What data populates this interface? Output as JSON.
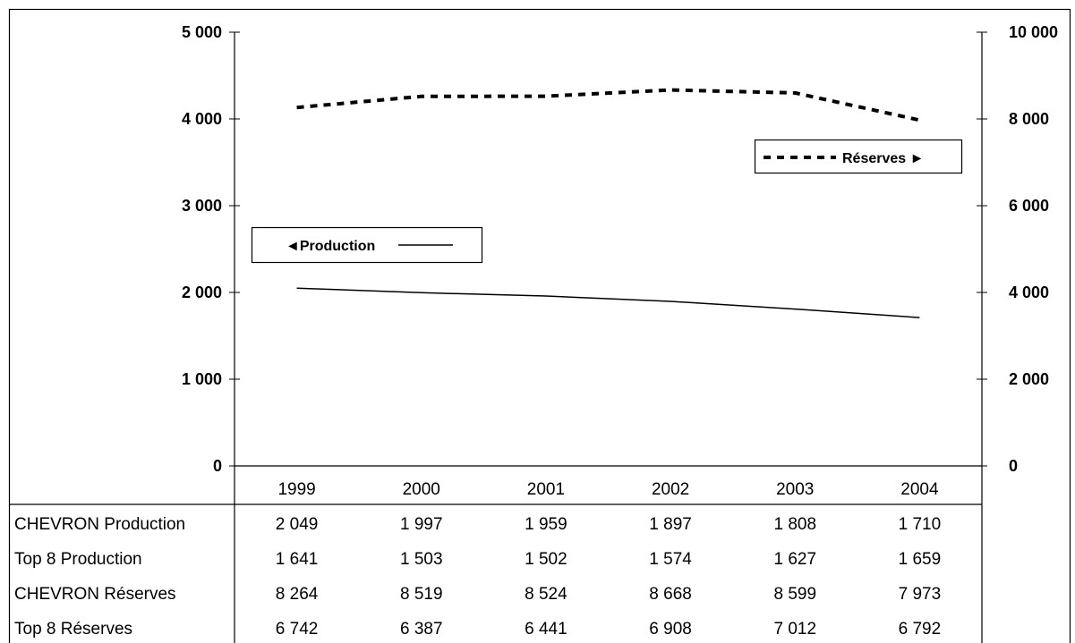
{
  "chart_data": {
    "type": "line",
    "categories": [
      "1999",
      "2000",
      "2001",
      "2002",
      "2003",
      "2004"
    ],
    "series": [
      {
        "name": "Production",
        "axis": "left",
        "style": "solid",
        "values": [
          2049,
          1997,
          1959,
          1897,
          1808,
          1710
        ]
      },
      {
        "name": "Réserves",
        "axis": "right",
        "style": "dashed",
        "values": [
          8264,
          8519,
          8524,
          8668,
          8599,
          7973
        ]
      }
    ],
    "y_left": {
      "ylim": [
        0,
        5000
      ],
      "ticks": [
        0,
        1000,
        2000,
        3000,
        4000,
        5000
      ],
      "tick_labels": [
        "0",
        "1 000",
        "2 000",
        "3 000",
        "4 000",
        "5 000"
      ]
    },
    "y_right": {
      "ylim": [
        0,
        10000
      ],
      "ticks": [
        0,
        2000,
        4000,
        6000,
        8000,
        10000
      ],
      "tick_labels": [
        "0",
        "2 000",
        "4 000",
        "6 000",
        "8 000",
        "10 000"
      ]
    },
    "legends": {
      "production": "◄Production",
      "reserves": "Réserves ►"
    },
    "grid": false,
    "data_table": {
      "rows": [
        {
          "label": "CHEVRON Production",
          "cells": [
            "2 049",
            "1 997",
            "1 959",
            "1 897",
            "1 808",
            "1 710"
          ]
        },
        {
          "label": "Top 8 Production",
          "cells": [
            "1 641",
            "1 503",
            "1 502",
            "1 574",
            "1 627",
            "1 659"
          ]
        },
        {
          "label": "CHEVRON Réserves",
          "cells": [
            "8 264",
            "8 519",
            "8 524",
            "8 668",
            "8 599",
            "7 973"
          ]
        },
        {
          "label": "Top 8 Réserves",
          "cells": [
            "6 742",
            "6 387",
            "6 441",
            "6 908",
            "7 012",
            "6 792"
          ]
        }
      ]
    }
  }
}
